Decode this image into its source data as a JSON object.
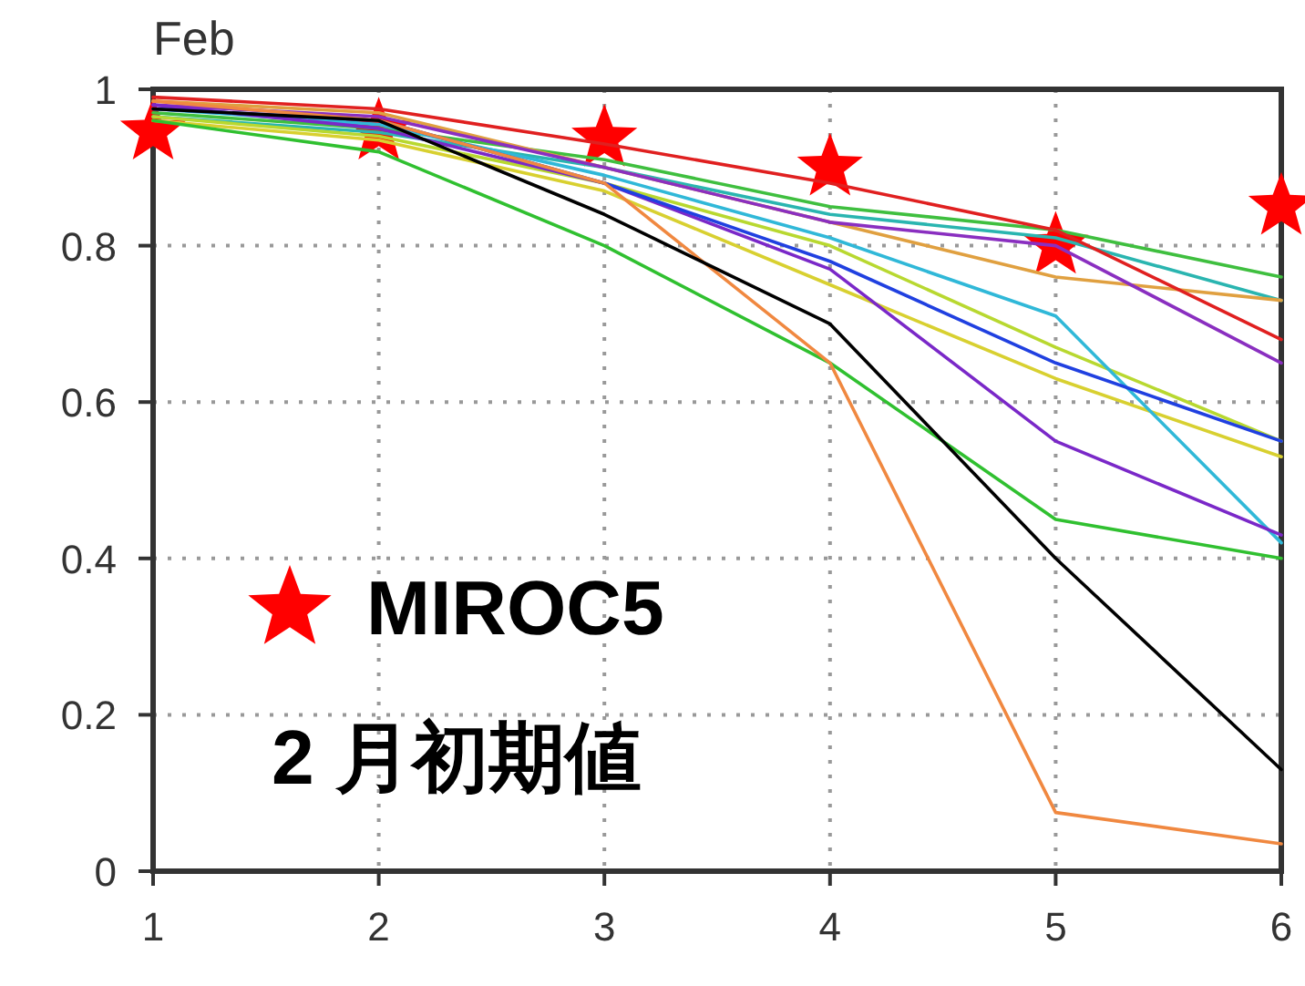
{
  "chart_data": {
    "type": "line",
    "title": "Feb",
    "annotations": [
      "2 月初期値"
    ],
    "x": [
      1,
      2,
      3,
      4,
      5,
      6
    ],
    "xlim": [
      1,
      6
    ],
    "ylim": [
      0,
      1
    ],
    "xticks": [
      1,
      2,
      3,
      4,
      5,
      6
    ],
    "yticks": [
      0,
      0.2,
      0.4,
      0.6,
      0.8,
      1
    ],
    "grid": true,
    "legend": "bottom left",
    "marker": "none",
    "series": [
      {
        "color": "#3fbf3f",
        "values": [
          0.97,
          0.95,
          0.91,
          0.85,
          0.82,
          0.76
        ]
      },
      {
        "color": "#2ab5b0",
        "values": [
          0.965,
          0.945,
          0.9,
          0.84,
          0.81,
          0.73
        ]
      },
      {
        "color": "#e0a040",
        "values": [
          0.985,
          0.97,
          0.9,
          0.83,
          0.76,
          0.73
        ]
      },
      {
        "color": "#8a2fc0",
        "values": [
          0.98,
          0.965,
          0.9,
          0.83,
          0.8,
          0.65
        ]
      },
      {
        "color": "#d8d030",
        "values": [
          0.96,
          0.935,
          0.87,
          0.75,
          0.63,
          0.53
        ]
      },
      {
        "color": "#b8d830",
        "values": [
          0.965,
          0.94,
          0.88,
          0.8,
          0.67,
          0.55
        ]
      },
      {
        "color": "#30b8d8",
        "values": [
          0.975,
          0.955,
          0.89,
          0.81,
          0.71,
          0.42
        ]
      },
      {
        "color": "#7a28c8",
        "values": [
          0.98,
          0.95,
          0.88,
          0.77,
          0.55,
          0.43
        ]
      },
      {
        "color": "#2040e0",
        "values": [
          0.975,
          0.96,
          0.88,
          0.78,
          0.65,
          0.55
        ]
      },
      {
        "color": "#30c030",
        "values": [
          0.96,
          0.92,
          0.8,
          0.65,
          0.45,
          0.4
        ]
      },
      {
        "color": "#f08840",
        "values": [
          0.985,
          0.96,
          0.88,
          0.65,
          0.075,
          0.035
        ]
      },
      {
        "color": "#000000",
        "values": [
          0.975,
          0.96,
          0.84,
          0.7,
          0.4,
          0.13
        ]
      },
      {
        "color": "#e02020",
        "values": [
          0.99,
          0.975,
          0.93,
          0.88,
          0.82,
          0.68
        ]
      },
      {
        "name": "MIROC5",
        "type": "scatter",
        "marker": "star",
        "color": "#ff0000",
        "values": [
          0.946,
          0.946,
          0.937,
          0.9,
          0.8,
          0.85
        ]
      }
    ]
  }
}
